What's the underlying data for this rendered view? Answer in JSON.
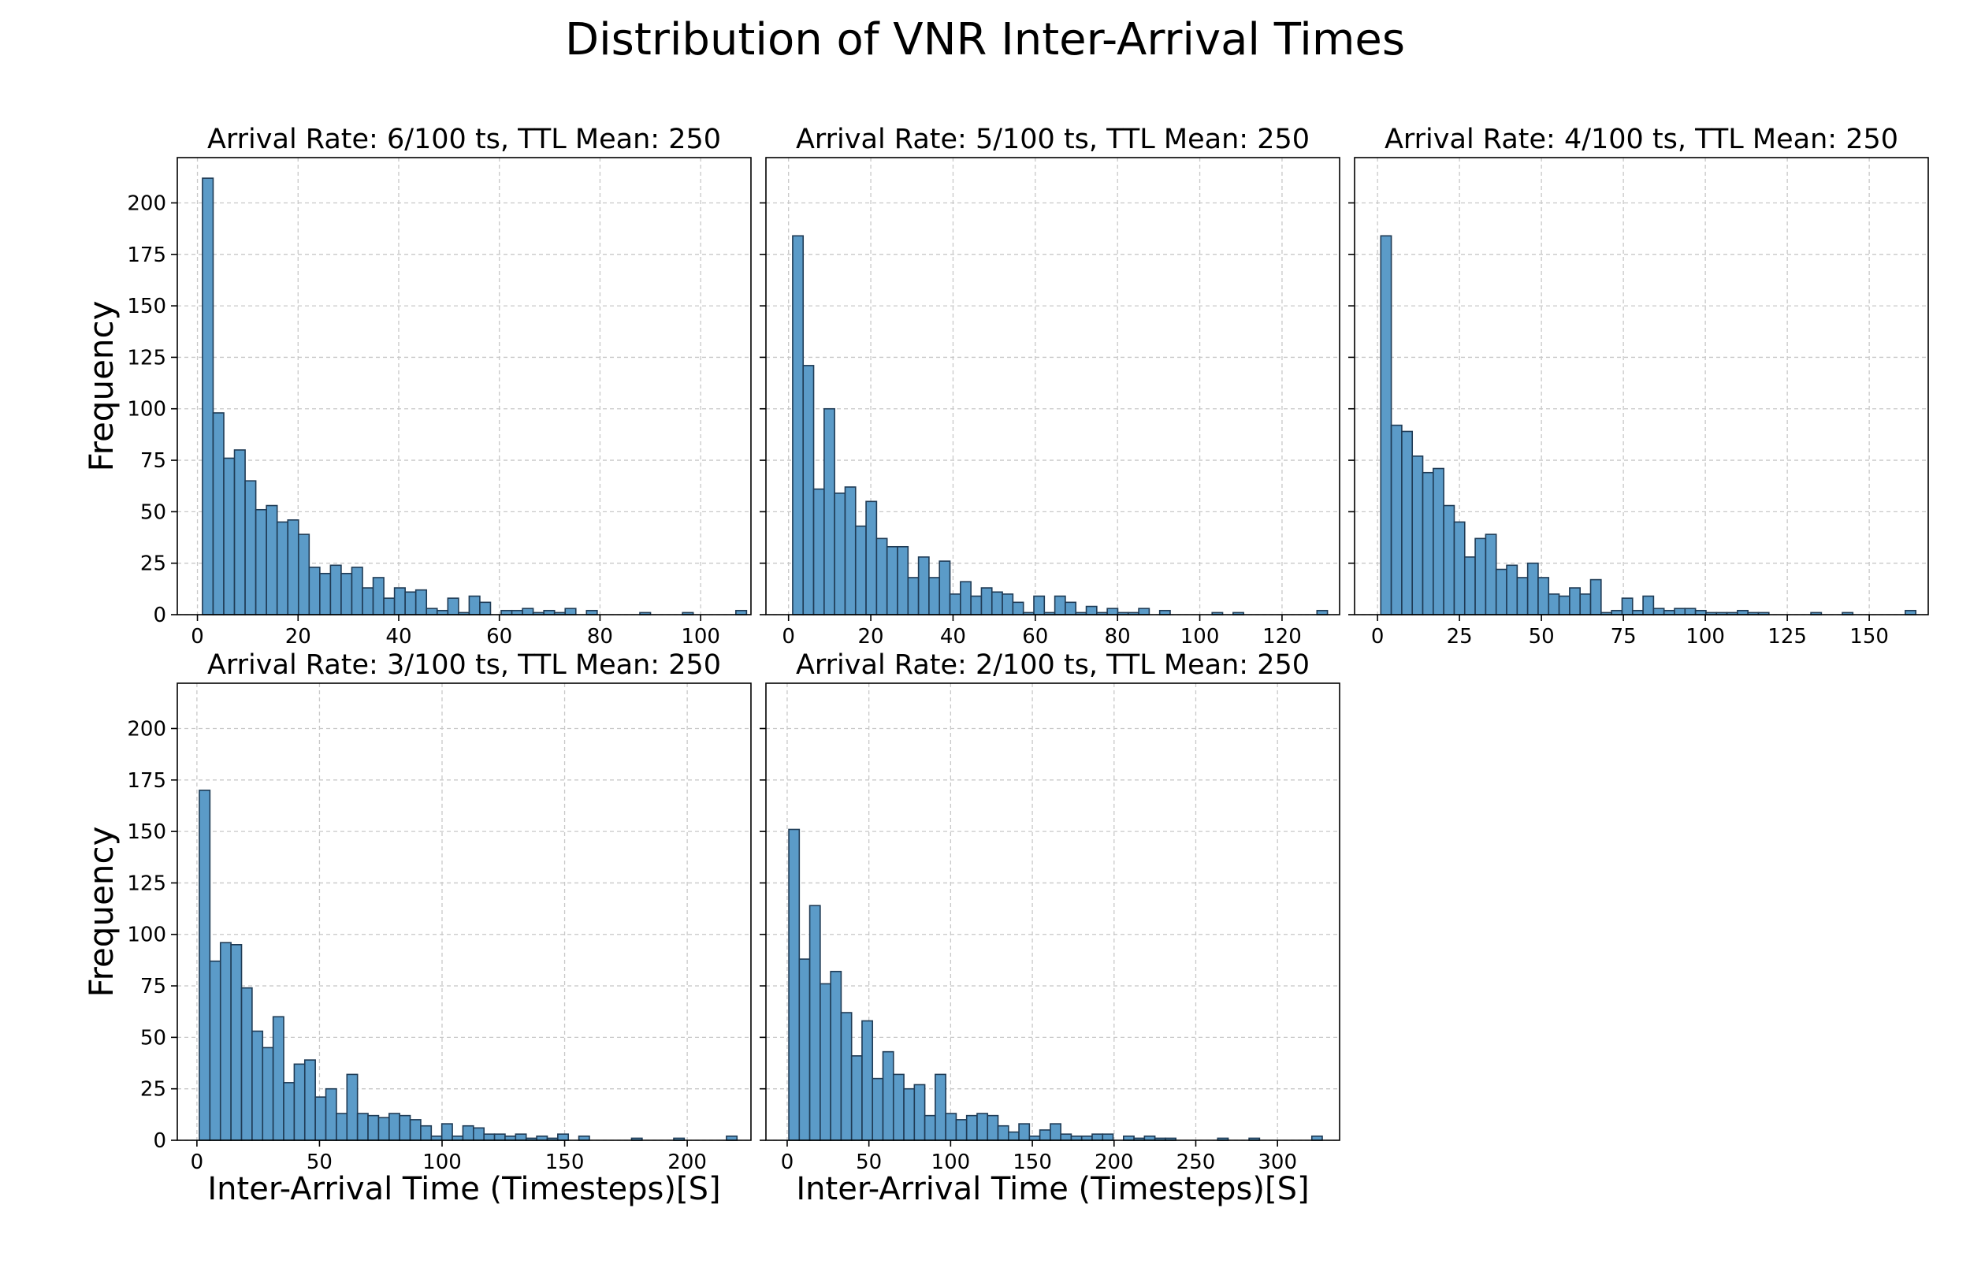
{
  "figure": {
    "title": "Distribution of VNR Inter-Arrival Times"
  },
  "colors": {
    "bar_fill": "#5b9bc8",
    "bar_stroke": "#1f3b55",
    "grid": "#c8c8c8",
    "axis": "#000000"
  },
  "chart_data": [
    {
      "type": "bar",
      "title": "Arrival Rate: 6/100 ts, TTL Mean: 250",
      "xlabel": "",
      "ylabel": "Frequency",
      "xlim": [
        -4,
        110
      ],
      "ylim": [
        0,
        222
      ],
      "xticks": [
        0,
        20,
        40,
        60,
        80,
        100
      ],
      "yticks": [
        0,
        25,
        50,
        75,
        100,
        125,
        150,
        175,
        200
      ],
      "show_yticklabels": true,
      "grid": true,
      "bin_start": 1,
      "bin_width": 2.12,
      "values": [
        212,
        98,
        76,
        80,
        65,
        51,
        53,
        45,
        46,
        39,
        23,
        20,
        24,
        20,
        23,
        13,
        18,
        8,
        13,
        11,
        12,
        3,
        2,
        8,
        1,
        9,
        6,
        0,
        2,
        2,
        3,
        1,
        2,
        1,
        3,
        0,
        2,
        0,
        0,
        0,
        0,
        1,
        0,
        0,
        0,
        1,
        0,
        0,
        0,
        0,
        2
      ]
    },
    {
      "type": "bar",
      "title": "Arrival Rate: 5/100 ts, TTL Mean: 250",
      "xlabel": "",
      "ylabel": "",
      "xlim": [
        -5.5,
        134
      ],
      "ylim": [
        0,
        222
      ],
      "xticks": [
        0,
        20,
        40,
        60,
        80,
        100,
        120
      ],
      "yticks": [
        0,
        25,
        50,
        75,
        100,
        125,
        150,
        175,
        200
      ],
      "show_yticklabels": false,
      "grid": true,
      "bin_start": 1,
      "bin_width": 2.55,
      "values": [
        184,
        121,
        61,
        100,
        59,
        62,
        43,
        55,
        37,
        33,
        33,
        18,
        28,
        18,
        26,
        10,
        16,
        9,
        13,
        11,
        10,
        6,
        1,
        9,
        1,
        9,
        6,
        1,
        4,
        1,
        3,
        1,
        1,
        3,
        0,
        2,
        0,
        0,
        0,
        0,
        1,
        0,
        1,
        0,
        0,
        0,
        0,
        0,
        0,
        0,
        2
      ]
    },
    {
      "type": "bar",
      "title": "Arrival Rate: 4/100 ts, TTL Mean: 250",
      "xlabel": "",
      "ylabel": "",
      "xlim": [
        -7,
        168
      ],
      "ylim": [
        0,
        222
      ],
      "xticks": [
        0,
        25,
        50,
        75,
        100,
        125,
        150
      ],
      "yticks": [
        0,
        25,
        50,
        75,
        100,
        125,
        150,
        175,
        200
      ],
      "show_yticklabels": false,
      "grid": true,
      "bin_start": 1,
      "bin_width": 3.2,
      "values": [
        184,
        92,
        89,
        77,
        69,
        71,
        53,
        45,
        28,
        37,
        39,
        22,
        24,
        18,
        25,
        18,
        10,
        9,
        13,
        10,
        17,
        1,
        2,
        8,
        2,
        9,
        3,
        2,
        3,
        3,
        2,
        1,
        1,
        1,
        2,
        1,
        1,
        0,
        0,
        0,
        0,
        1,
        0,
        0,
        1,
        0,
        0,
        0,
        0,
        0,
        2
      ]
    },
    {
      "type": "bar",
      "title": "Arrival Rate: 3/100 ts, TTL Mean: 250",
      "xlabel": "Inter-Arrival Time (Timesteps)[S]",
      "ylabel": "Frequency",
      "xlim": [
        -8,
        226
      ],
      "ylim": [
        0,
        222
      ],
      "xticks": [
        0,
        50,
        100,
        150,
        200
      ],
      "yticks": [
        0,
        25,
        50,
        75,
        100,
        125,
        150,
        175,
        200
      ],
      "show_yticklabels": true,
      "grid": true,
      "bin_start": 1,
      "bin_width": 4.3,
      "values": [
        170,
        87,
        96,
        95,
        74,
        53,
        45,
        60,
        28,
        37,
        39,
        21,
        25,
        13,
        32,
        13,
        12,
        11,
        13,
        12,
        10,
        7,
        2,
        8,
        2,
        7,
        6,
        3,
        3,
        2,
        3,
        1,
        2,
        1,
        3,
        0,
        2,
        0,
        0,
        0,
        0,
        1,
        0,
        0,
        0,
        1,
        0,
        0,
        0,
        0,
        2
      ]
    },
    {
      "type": "bar",
      "title": "Arrival Rate: 2/100 ts, TTL Mean: 250",
      "xlabel": "Inter-Arrival Time (Timesteps)[S]",
      "ylabel": "",
      "xlim": [
        -13,
        338
      ],
      "ylim": [
        0,
        222
      ],
      "xticks": [
        0,
        50,
        100,
        150,
        200,
        250,
        300
      ],
      "yticks": [
        0,
        25,
        50,
        75,
        100,
        125,
        150,
        175,
        200
      ],
      "show_yticklabels": false,
      "grid": true,
      "bin_start": 1,
      "bin_width": 6.4,
      "values": [
        151,
        88,
        114,
        76,
        82,
        62,
        41,
        58,
        30,
        43,
        32,
        25,
        27,
        12,
        32,
        13,
        10,
        12,
        13,
        12,
        7,
        4,
        8,
        2,
        5,
        8,
        3,
        2,
        2,
        3,
        3,
        0,
        2,
        1,
        2,
        1,
        1,
        0,
        0,
        0,
        0,
        1,
        0,
        0,
        1,
        0,
        0,
        0,
        0,
        0,
        2
      ]
    }
  ]
}
